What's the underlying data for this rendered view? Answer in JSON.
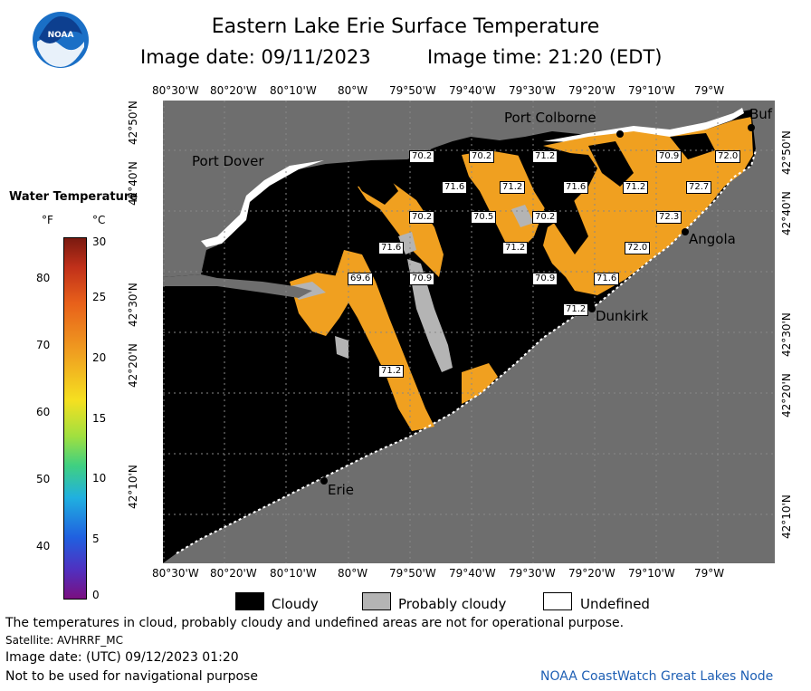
{
  "header": {
    "title": "Eastern Lake Erie Surface Temperature",
    "date_label": "Image date: 09/11/2023",
    "time_label": "Image time: 21:20 (EDT)"
  },
  "logo": {
    "text": "NOAA"
  },
  "axes": {
    "longitude_ticks": [
      "80°30'W",
      "80°20'W",
      "80°10'W",
      "80°W",
      "79°50'W",
      "79°40'W",
      "79°30'W",
      "79°20'W",
      "79°10'W",
      "79°W"
    ],
    "latitude_ticks": [
      "42°50'N",
      "42°40'N",
      "42°30'N",
      "42°20'N",
      "42°10'N"
    ]
  },
  "places": {
    "port_colborne": "Port Colborne",
    "buffalo": "Buf",
    "port_dover": "Port Dover",
    "angola": "Angola",
    "dunkirk": "Dunkirk",
    "erie": "Erie"
  },
  "temperature_labels": [
    "70.2",
    "70.2",
    "71.2",
    "70.9",
    "72.0",
    "71.6",
    "71.2",
    "71.6",
    "71.2",
    "72.7",
    "70.2",
    "70.5",
    "70.2",
    "72.3",
    "71.6",
    "71.2",
    "72.0",
    "70.9",
    "70.9",
    "71.6",
    "69.6",
    "71.2",
    "71.2"
  ],
  "color_legend": {
    "title": "Water Temperature",
    "unit_f": "°F",
    "unit_c": "°C",
    "f_ticks": [
      "80",
      "70",
      "60",
      "50",
      "40"
    ],
    "c_ticks": [
      "30",
      "25",
      "20",
      "15",
      "10",
      "5",
      "0"
    ]
  },
  "key": {
    "cloudy": "Cloudy",
    "probably_cloudy": "Probably cloudy",
    "undefined": "Undefined"
  },
  "footer": {
    "disclaimer": "The temperatures in cloud, probably cloudy and undefined areas are not for operational purpose.",
    "satellite": "Satellite: AVHRRF_MC",
    "utc_date": "Image date: (UTC) 09/12/2023  01:20",
    "nav_warning": "Not to be used for navigational purpose",
    "credit": "NOAA CoastWatch Great Lakes Node"
  },
  "colors": {
    "land": "#6e6e6e",
    "cloud": "#000000",
    "probably_cloudy": "#b4b4b4",
    "water_warm": "#f0a020",
    "undefined": "#ffffff"
  }
}
